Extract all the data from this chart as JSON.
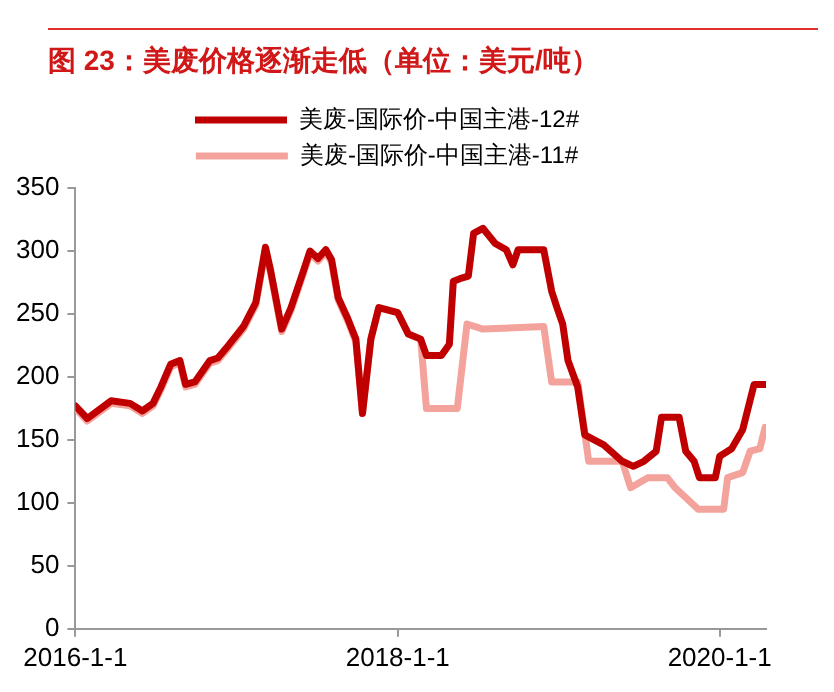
{
  "chart_data": {
    "type": "line",
    "title": "图  23：美废价格逐渐走低（单位：美元/吨）",
    "xlim": [
      "2016-01-01",
      "2020-04-15"
    ],
    "xticks": [
      {
        "value": "2016-01-01",
        "label": "2016-1-1"
      },
      {
        "value": "2018-01-01",
        "label": "2018-1-1"
      },
      {
        "value": "2020-01-01",
        "label": "2020-1-1"
      }
    ],
    "ylim": [
      0,
      350
    ],
    "yticks": [
      0,
      50,
      100,
      150,
      200,
      250,
      300,
      350
    ],
    "grid": false,
    "legend": "top",
    "marker": "none",
    "line_style": "solid",
    "series": [
      {
        "name": "美废-国际价-中国主港-12#",
        "color": "#c00000",
        "x": [
          "2016-01-01",
          "2016-01-28",
          "2016-02-28",
          "2016-03-22",
          "2016-05-04",
          "2016-06-01",
          "2016-06-25",
          "2016-07-13",
          "2016-08-04",
          "2016-08-25",
          "2016-09-07",
          "2016-09-28",
          "2016-11-01",
          "2016-11-19",
          "2016-12-13",
          "2017-01-16",
          "2017-02-13",
          "2017-03-07",
          "2017-03-19",
          "2017-04-13",
          "2017-05-04",
          "2017-06-01",
          "2017-06-16",
          "2017-07-04",
          "2017-07-22",
          "2017-08-04",
          "2017-08-19",
          "2017-09-10",
          "2017-09-28",
          "2017-10-13",
          "2017-11-01",
          "2017-11-19",
          "2018-01-01",
          "2018-01-25",
          "2018-02-22",
          "2018-03-07",
          "2018-04-10",
          "2018-04-28",
          "2018-05-07",
          "2018-05-22",
          "2018-06-10",
          "2018-06-22",
          "2018-07-13",
          "2018-08-10",
          "2018-09-04",
          "2018-09-19",
          "2018-10-01",
          "2018-11-28",
          "2018-12-16",
          "2018-12-28",
          "2019-01-10",
          "2019-01-22",
          "2019-02-13",
          "2019-03-01",
          "2019-04-13",
          "2019-05-25",
          "2019-06-19",
          "2019-07-13",
          "2019-08-10",
          "2019-08-22",
          "2019-10-01",
          "2019-10-16",
          "2019-11-04",
          "2019-11-16",
          "2019-12-22",
          "2020-01-01",
          "2020-01-28",
          "2020-02-22",
          "2020-03-19",
          "2020-04-13"
        ],
        "values": [
          177,
          167,
          175,
          181,
          179,
          173,
          179,
          192,
          210,
          213,
          194,
          196,
          213,
          215,
          225,
          240,
          259,
          303,
          284,
          238,
          255,
          284,
          300,
          294,
          301,
          293,
          263,
          246,
          230,
          171,
          230,
          255,
          251,
          234,
          230,
          217,
          217,
          226,
          276,
          278,
          280,
          314,
          318,
          306,
          301,
          289,
          301,
          301,
          268,
          255,
          242,
          213,
          192,
          154,
          146,
          133,
          129,
          133,
          141,
          168,
          168,
          141,
          133,
          120,
          120,
          137,
          143,
          158,
          194,
          194
        ]
      },
      {
        "name": "美废-国际价-中国主港-11#",
        "color": "#f4a39c",
        "x": [
          "2016-01-01",
          "2016-01-28",
          "2016-02-28",
          "2016-03-22",
          "2016-05-04",
          "2016-06-01",
          "2016-06-25",
          "2016-07-13",
          "2016-08-04",
          "2016-08-25",
          "2016-09-07",
          "2016-09-28",
          "2016-11-01",
          "2016-11-19",
          "2016-12-13",
          "2017-01-16",
          "2017-02-13",
          "2017-03-07",
          "2017-03-19",
          "2017-04-13",
          "2017-05-04",
          "2017-06-01",
          "2017-06-16",
          "2017-07-04",
          "2017-07-22",
          "2017-08-04",
          "2017-08-19",
          "2017-09-10",
          "2017-09-28",
          "2017-10-13",
          "2017-11-01",
          "2017-11-19",
          "2018-01-01",
          "2018-01-25",
          "2018-02-22",
          "2018-03-07",
          "2018-05-16",
          "2018-06-07",
          "2018-07-13",
          "2018-11-28",
          "2018-12-16",
          "2019-02-13",
          "2019-03-10",
          "2019-05-25",
          "2019-06-13",
          "2019-07-22",
          "2019-09-04",
          "2019-09-22",
          "2019-11-13",
          "2020-01-10",
          "2020-01-19",
          "2020-02-22",
          "2020-03-10",
          "2020-04-01",
          "2020-04-13"
        ],
        "values": [
          175,
          165,
          173,
          179,
          177,
          171,
          177,
          190,
          208,
          211,
          192,
          194,
          211,
          213,
          223,
          238,
          257,
          301,
          282,
          236,
          253,
          282,
          298,
          292,
          299,
          291,
          261,
          244,
          228,
          171,
          230,
          255,
          251,
          234,
          230,
          175,
          175,
          242,
          238,
          240,
          196,
          196,
          133,
          133,
          112,
          120,
          120,
          112,
          95,
          95,
          120,
          124,
          141,
          143,
          160
        ]
      }
    ]
  }
}
